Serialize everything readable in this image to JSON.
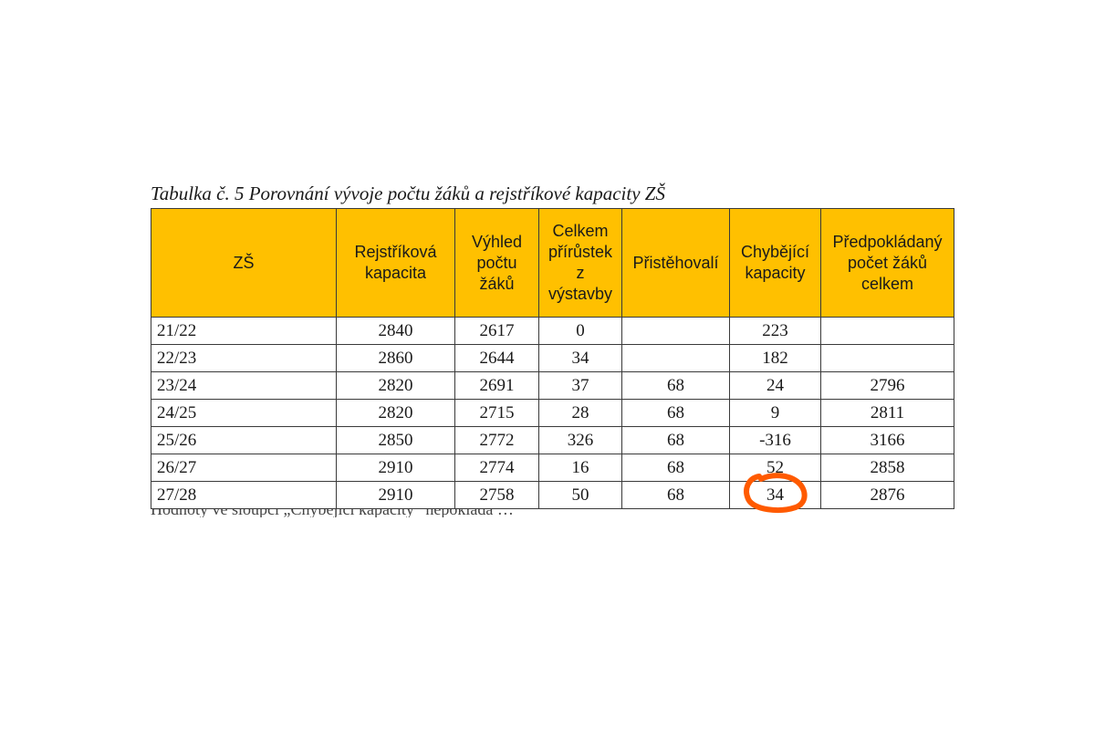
{
  "caption": "Tabulka č. 5 Porovnání vývoje počtu žáků a rejstříkové kapacity ZŠ",
  "table": {
    "headers": [
      "ZŠ",
      "Rejstříková\nkapacita",
      "Výhled\npočtu\nžáků",
      "Celkem\npřírůstek\nz\nvýstavby",
      "Přistěhovalí",
      "Chybějící\nkapacity",
      "Předpokládaný\npočet žáků\ncelkem"
    ],
    "rows": [
      [
        "21/22",
        "2840",
        "2617",
        "0",
        "",
        "223",
        ""
      ],
      [
        "22/23",
        "2860",
        "2644",
        "34",
        "",
        "182",
        ""
      ],
      [
        "23/24",
        "2820",
        "2691",
        "37",
        "68",
        "24",
        "2796"
      ],
      [
        "24/25",
        "2820",
        "2715",
        "28",
        "68",
        "9",
        "2811"
      ],
      [
        "25/26",
        "2850",
        "2772",
        "326",
        "68",
        "-316",
        "3166"
      ],
      [
        "26/27",
        "2910",
        "2774",
        "16",
        "68",
        "52",
        "2858"
      ],
      [
        "27/28",
        "2910",
        "2758",
        "50",
        "68",
        "34",
        "2876"
      ]
    ]
  },
  "cutoff_text": "Hodnoty ve sloupci „Chybějící kapacity“ nepokládá …",
  "colors": {
    "header_bg": "#ffc000",
    "highlight_circle": "#ff5a00"
  }
}
